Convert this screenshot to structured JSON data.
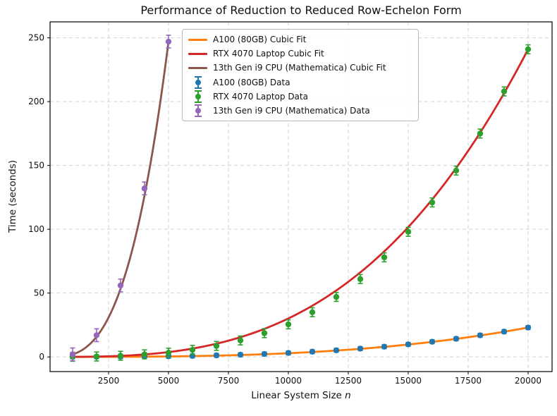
{
  "chart_data": {
    "type": "line+scatter",
    "title": "Performance of Reduction to Reduced Row-Echelon Form",
    "xlabel_prefix": "Linear System Size ",
    "xlabel_var": "n",
    "ylabel": "Time (seconds)",
    "xlim": [
      60,
      21000
    ],
    "ylim": [
      -11.5,
      262.5
    ],
    "x_ticks": [
      2500,
      5000,
      7500,
      10000,
      12500,
      15000,
      17500,
      20000
    ],
    "y_ticks": [
      0,
      50,
      100,
      150,
      200,
      250
    ],
    "grid": {
      "visible": true,
      "style": "dashed",
      "color": "#d2d2d2"
    },
    "frame_color": "#000000",
    "legend": {
      "position": "upper-left",
      "items": [
        {
          "label": "A100 (80GB) Cubic Fit",
          "type": "line",
          "color": "#ff7f0e"
        },
        {
          "label": "RTX 4070 Laptop Cubic Fit",
          "type": "line",
          "color": "#d62728"
        },
        {
          "label": "13th Gen i9 CPU (Mathematica) Cubic Fit",
          "type": "line",
          "color": "#8c564b"
        },
        {
          "label": "A100 (80GB) Data",
          "type": "errorbar",
          "color": "#1f77b4"
        },
        {
          "label": "RTX 4070 Laptop Data",
          "type": "errorbar",
          "color": "#2ca02c"
        },
        {
          "label": "13th Gen i9 CPU (Mathematica) Data",
          "type": "errorbar",
          "color": "#9467bd"
        }
      ]
    },
    "fit_curves": [
      {
        "name": "A100 (80GB) Cubic Fit",
        "color": "#ff7f0e",
        "c3": 2.875e-12,
        "x_range": [
          1000,
          20000
        ]
      },
      {
        "name": "RTX 4070 Laptop Cubic Fit",
        "color": "#d62728",
        "c3": 3.0125e-11,
        "x_range": [
          1000,
          20000
        ]
      },
      {
        "name": "13th Gen i9 CPU (Mathematica) Cubic Fit",
        "color": "#8c564b",
        "c3": 1.976e-09,
        "x_range": [
          1000,
          5000
        ]
      }
    ],
    "data_series": [
      {
        "name": "A100 (80GB) Data",
        "color": "#1f77b4",
        "yerr": 1.5,
        "x": [
          1000,
          2000,
          3000,
          4000,
          5000,
          6000,
          7000,
          8000,
          9000,
          10000,
          11000,
          12000,
          13000,
          14000,
          15000,
          16000,
          17000,
          18000,
          19000,
          20000
        ],
        "y": [
          0.1,
          0.1,
          0.2,
          0.3,
          0.5,
          0.8,
          1.2,
          1.7,
          2.3,
          3.1,
          4.1,
          5.2,
          6.5,
          8.0,
          9.8,
          11.9,
          14.2,
          16.9,
          19.8,
          23.0
        ]
      },
      {
        "name": "RTX 4070 Laptop Data",
        "color": "#2ca02c",
        "yerr": 3.5,
        "x": [
          1000,
          2000,
          3000,
          4000,
          5000,
          6000,
          7000,
          8000,
          9000,
          10000,
          11000,
          12000,
          13000,
          14000,
          15000,
          16000,
          17000,
          18000,
          19000,
          20000
        ],
        "y": [
          0.1,
          0.3,
          0.9,
          2.0,
          3.3,
          5.5,
          8.6,
          12.9,
          18.6,
          25.5,
          35.0,
          47.0,
          61.0,
          78.0,
          98.0,
          121.0,
          146.0,
          175.0,
          208.0,
          241.0
        ]
      },
      {
        "name": "13th Gen i9 CPU (Mathematica) Data",
        "color": "#9467bd",
        "yerr": 5,
        "x": [
          1000,
          2000,
          3000,
          4000,
          5000
        ],
        "y": [
          2.0,
          17.0,
          56.0,
          132.0,
          247.0
        ]
      }
    ]
  }
}
